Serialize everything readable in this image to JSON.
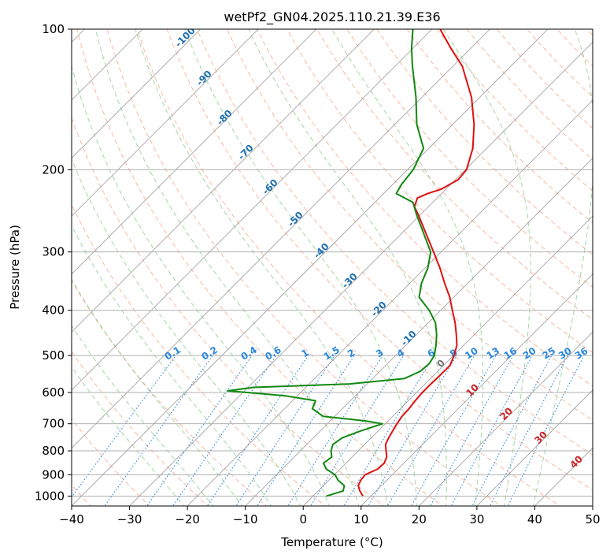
{
  "chart_data": {
    "type": "line",
    "subtype": "skew-T log-P diagram",
    "title": "wetPf2_GN04.2025.110.21.39.E36",
    "xlabel": "Temperature (°C)",
    "ylabel": "Pressure (hPa)",
    "xlim": [
      -40,
      50
    ],
    "ylim": [
      1050,
      100
    ],
    "y_scale": "log",
    "x_ticks": [
      "−40",
      "−30",
      "−20",
      "−10",
      "0",
      "10",
      "20",
      "30",
      "40",
      "50"
    ],
    "y_ticks": [
      "100",
      "200",
      "300",
      "400",
      "500",
      "600",
      "700",
      "800",
      "900",
      "1000"
    ],
    "grid": true,
    "colors": {
      "temperature": "#e01010",
      "dewpoint": "#118811",
      "isotherm": "#9a9a9a",
      "dry_adiabat": "#f4a080",
      "moist_adiabat": "#8fca8f",
      "mixing_ratio": "#2a88e0",
      "theta_e_label": "#1f6fb0",
      "wet_bulb_label": "#cc2222"
    },
    "series": [
      {
        "name": "Temperature",
        "points": [
          {
            "p": 1000,
            "t": 8.6
          },
          {
            "p": 975,
            "t": 7.2
          },
          {
            "p": 950,
            "t": 6.0
          },
          {
            "p": 925,
            "t": 5.5
          },
          {
            "p": 900,
            "t": 5.3
          },
          {
            "p": 875,
            "t": 6.5
          },
          {
            "p": 850,
            "t": 6.6
          },
          {
            "p": 825,
            "t": 6.0
          },
          {
            "p": 800,
            "t": 4.8
          },
          {
            "p": 775,
            "t": 3.6
          },
          {
            "p": 750,
            "t": 3.0
          },
          {
            "p": 725,
            "t": 2.5
          },
          {
            "p": 700,
            "t": 2.0
          },
          {
            "p": 675,
            "t": 1.6
          },
          {
            "p": 650,
            "t": 1.5
          },
          {
            "p": 625,
            "t": 1.2
          },
          {
            "p": 600,
            "t": 1.0
          },
          {
            "p": 575,
            "t": 1.0
          },
          {
            "p": 550,
            "t": 1.1
          },
          {
            "p": 525,
            "t": 1.1
          },
          {
            "p": 500,
            "t": 0.1
          },
          {
            "p": 475,
            "t": -1.2
          },
          {
            "p": 450,
            "t": -3.2
          },
          {
            "p": 425,
            "t": -5.4
          },
          {
            "p": 400,
            "t": -8.0
          },
          {
            "p": 375,
            "t": -10.7
          },
          {
            "p": 350,
            "t": -14.0
          },
          {
            "p": 325,
            "t": -17.4
          },
          {
            "p": 300,
            "t": -21.3
          },
          {
            "p": 275,
            "t": -25.6
          },
          {
            "p": 250,
            "t": -30.3
          },
          {
            "p": 240,
            "t": -32.4
          },
          {
            "p": 230,
            "t": -33.4
          },
          {
            "p": 225,
            "t": -32.4
          },
          {
            "p": 220,
            "t": -30.8
          },
          {
            "p": 210,
            "t": -29.5
          },
          {
            "p": 200,
            "t": -29.8
          },
          {
            "p": 180,
            "t": -32.4
          },
          {
            "p": 160,
            "t": -36.3
          },
          {
            "p": 140,
            "t": -41.4
          },
          {
            "p": 120,
            "t": -48.4
          },
          {
            "p": 110,
            "t": -53.4
          },
          {
            "p": 100,
            "t": -58.6
          }
        ]
      },
      {
        "name": "Dewpoint",
        "points": [
          {
            "p": 1000,
            "t": 2.3
          },
          {
            "p": 975,
            "t": 4.3
          },
          {
            "p": 950,
            "t": 3.6
          },
          {
            "p": 925,
            "t": 1.6
          },
          {
            "p": 900,
            "t": 0.1
          },
          {
            "p": 875,
            "t": -2.4
          },
          {
            "p": 850,
            "t": -3.9
          },
          {
            "p": 825,
            "t": -3.5
          },
          {
            "p": 800,
            "t": -4.7
          },
          {
            "p": 775,
            "t": -5.5
          },
          {
            "p": 750,
            "t": -5.0
          },
          {
            "p": 725,
            "t": -3.0
          },
          {
            "p": 700,
            "t": -0.5
          },
          {
            "p": 690,
            "t": -4.0
          },
          {
            "p": 675,
            "t": -12.0
          },
          {
            "p": 650,
            "t": -15.2
          },
          {
            "p": 625,
            "t": -16.0
          },
          {
            "p": 610,
            "t": -22.0
          },
          {
            "p": 595,
            "t": -32.9
          },
          {
            "p": 585,
            "t": -29.0
          },
          {
            "p": 575,
            "t": -13.0
          },
          {
            "p": 560,
            "t": -4.5
          },
          {
            "p": 540,
            "t": -3.0
          },
          {
            "p": 520,
            "t": -2.8
          },
          {
            "p": 500,
            "t": -3.3
          },
          {
            "p": 475,
            "t": -4.8
          },
          {
            "p": 450,
            "t": -6.6
          },
          {
            "p": 425,
            "t": -8.8
          },
          {
            "p": 400,
            "t": -12.0
          },
          {
            "p": 375,
            "t": -16.0
          },
          {
            "p": 350,
            "t": -18.0
          },
          {
            "p": 325,
            "t": -19.5
          },
          {
            "p": 300,
            "t": -21.8
          },
          {
            "p": 275,
            "t": -26.0
          },
          {
            "p": 250,
            "t": -30.6
          },
          {
            "p": 235,
            "t": -33.4
          },
          {
            "p": 225,
            "t": -37.8
          },
          {
            "p": 215,
            "t": -38.5
          },
          {
            "p": 200,
            "t": -39.0
          },
          {
            "p": 180,
            "t": -40.9
          },
          {
            "p": 160,
            "t": -46.2
          },
          {
            "p": 140,
            "t": -51.0
          },
          {
            "p": 120,
            "t": -57.0
          },
          {
            "p": 110,
            "t": -60.2
          },
          {
            "p": 100,
            "t": -63.3
          }
        ]
      }
    ],
    "theta_e_labels": [
      "-100",
      "-90",
      "-80",
      "-70",
      "-60",
      "-50",
      "-40",
      "-30",
      "-20",
      "-10"
    ],
    "mixing_ratio_labels": [
      "0.1",
      "0.2",
      "0.4",
      "0.6",
      "1",
      "1.5",
      "2",
      "3",
      "4",
      "6",
      "8",
      "10",
      "13",
      "16",
      "20",
      "25",
      "30",
      "36"
    ],
    "wet_bulb_labels": [
      "0",
      "10",
      "20",
      "30",
      "40"
    ]
  }
}
